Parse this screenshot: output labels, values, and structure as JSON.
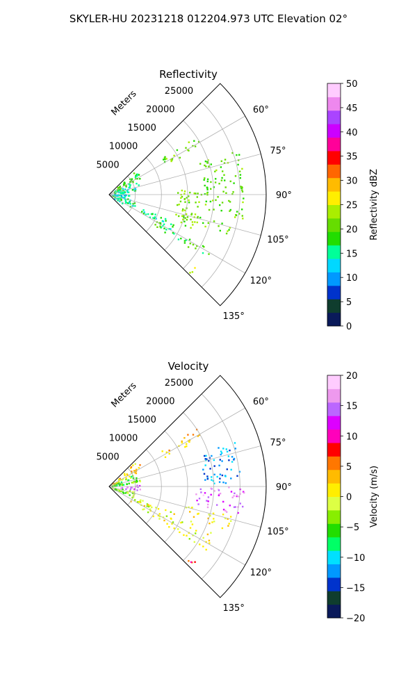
{
  "figure": {
    "suptitle": "SKYLER-HU  20231218  012204.973 UTC Elevation 02°"
  },
  "chart_data": [
    {
      "type": "heatmap",
      "projection": "polar-sector",
      "title": "Reflectivity",
      "radial_axis_label": "Meters",
      "radial_ticks": [
        "5000",
        "10000",
        "15000",
        "20000",
        "25000"
      ],
      "radial_tick_values": [
        5000,
        10000,
        15000,
        20000,
        25000
      ],
      "rmax": 30000,
      "azimuth_range_deg": [
        45,
        135
      ],
      "azimuth_ticks": [
        "60°",
        "75°",
        "90°",
        "105°",
        "120°",
        "135°"
      ],
      "azimuth_tick_values": [
        60,
        75,
        90,
        105,
        120,
        135
      ],
      "grid": true,
      "colorbar": {
        "label": "Reflectivity dBZ",
        "range": [
          0,
          50
        ],
        "ticks": [
          "0",
          "5",
          "10",
          "15",
          "20",
          "25",
          "30",
          "35",
          "40",
          "45",
          "50"
        ],
        "tick_values": [
          0,
          5,
          10,
          15,
          20,
          25,
          30,
          35,
          40,
          45,
          50
        ],
        "colors": [
          "#0a1a5a",
          "#0f3d2e",
          "#0033cc",
          "#0099ff",
          "#00d8ff",
          "#00ff99",
          "#22dd00",
          "#66dd00",
          "#aaee00",
          "#ffee00",
          "#ffbb00",
          "#ff6600",
          "#ff0000",
          "#ff0099",
          "#cc00ff",
          "#aa44ff",
          "#ee88ee",
          "#ffccff"
        ]
      },
      "echoes": [
        {
          "az": [
            46,
            62
          ],
          "r": [
            500,
            7000
          ],
          "value": 19
        },
        {
          "az": [
            62,
            80
          ],
          "r": [
            500,
            6000
          ],
          "value": 15
        },
        {
          "az": [
            80,
            100
          ],
          "r": [
            500,
            4000
          ],
          "value": 13
        },
        {
          "az": [
            100,
            115
          ],
          "r": [
            500,
            5000
          ],
          "value": 16
        },
        {
          "az": [
            115,
            128
          ],
          "r": [
            500,
            3000
          ],
          "value": 14
        },
        {
          "az": [
            55,
            62
          ],
          "r": [
            12000,
            20000
          ],
          "value": 21
        },
        {
          "az": [
            70,
            100
          ],
          "r": [
            18000,
            26000
          ],
          "value": 20
        },
        {
          "az": [
            85,
            112
          ],
          "r": [
            13000,
            17500
          ],
          "value": 22
        },
        {
          "az": [
            103,
            110
          ],
          "r": [
            15000,
            24000
          ],
          "value": 21
        },
        {
          "az": [
            112,
            120
          ],
          "r": [
            4000,
            14000
          ],
          "value": 16
        },
        {
          "az": [
            118,
            124
          ],
          "r": [
            10000,
            22000
          ],
          "value": 19
        },
        {
          "az": [
            130,
            134
          ],
          "r": [
            20000,
            22000
          ],
          "value": 24
        }
      ]
    },
    {
      "type": "heatmap",
      "projection": "polar-sector",
      "title": "Velocity",
      "radial_axis_label": "Meters",
      "radial_ticks": [
        "5000",
        "10000",
        "15000",
        "20000",
        "25000"
      ],
      "radial_tick_values": [
        5000,
        10000,
        15000,
        20000,
        25000
      ],
      "rmax": 30000,
      "azimuth_range_deg": [
        45,
        135
      ],
      "azimuth_ticks": [
        "60°",
        "75°",
        "90°",
        "105°",
        "120°",
        "135°"
      ],
      "azimuth_tick_values": [
        60,
        75,
        90,
        105,
        120,
        135
      ],
      "grid": true,
      "colorbar": {
        "label": "Velocity (m/s)",
        "range": [
          -20,
          20
        ],
        "ticks": [
          "−20",
          "−15",
          "−10",
          "−5",
          "0",
          "5",
          "10",
          "15",
          "20"
        ],
        "tick_values": [
          -20,
          -15,
          -10,
          -5,
          0,
          5,
          10,
          15,
          20
        ],
        "colors": [
          "#0a1a5a",
          "#0f3d2e",
          "#0033cc",
          "#0099ff",
          "#00e0ff",
          "#00ff66",
          "#22dd00",
          "#88ee00",
          "#ddff44",
          "#ffee00",
          "#ffbb00",
          "#ff7700",
          "#ff0000",
          "#ff00bb",
          "#dd00ff",
          "#bb66ff",
          "#ee99ee",
          "#ffccff"
        ]
      },
      "echoes": [
        {
          "az": [
            46,
            62
          ],
          "r": [
            500,
            7500
          ],
          "value": 2
        },
        {
          "az": [
            62,
            80
          ],
          "r": [
            500,
            6000
          ],
          "value": -5
        },
        {
          "az": [
            85,
            98
          ],
          "r": [
            2000,
            6000
          ],
          "value": 14
        },
        {
          "az": [
            100,
            115
          ],
          "r": [
            500,
            5000
          ],
          "value": -3
        },
        {
          "az": [
            55,
            62
          ],
          "r": [
            12000,
            20000
          ],
          "value": 3
        },
        {
          "az": [
            70,
            88
          ],
          "r": [
            18000,
            26000
          ],
          "value": -12
        },
        {
          "az": [
            90,
            102
          ],
          "r": [
            16000,
            26000
          ],
          "value": 15
        },
        {
          "az": [
            103,
            110
          ],
          "r": [
            15000,
            24000
          ],
          "value": 1
        },
        {
          "az": [
            112,
            124
          ],
          "r": [
            4000,
            22000
          ],
          "value": 0
        },
        {
          "az": [
            130,
            134
          ],
          "r": [
            20000,
            22000
          ],
          "value": 8
        }
      ]
    }
  ]
}
